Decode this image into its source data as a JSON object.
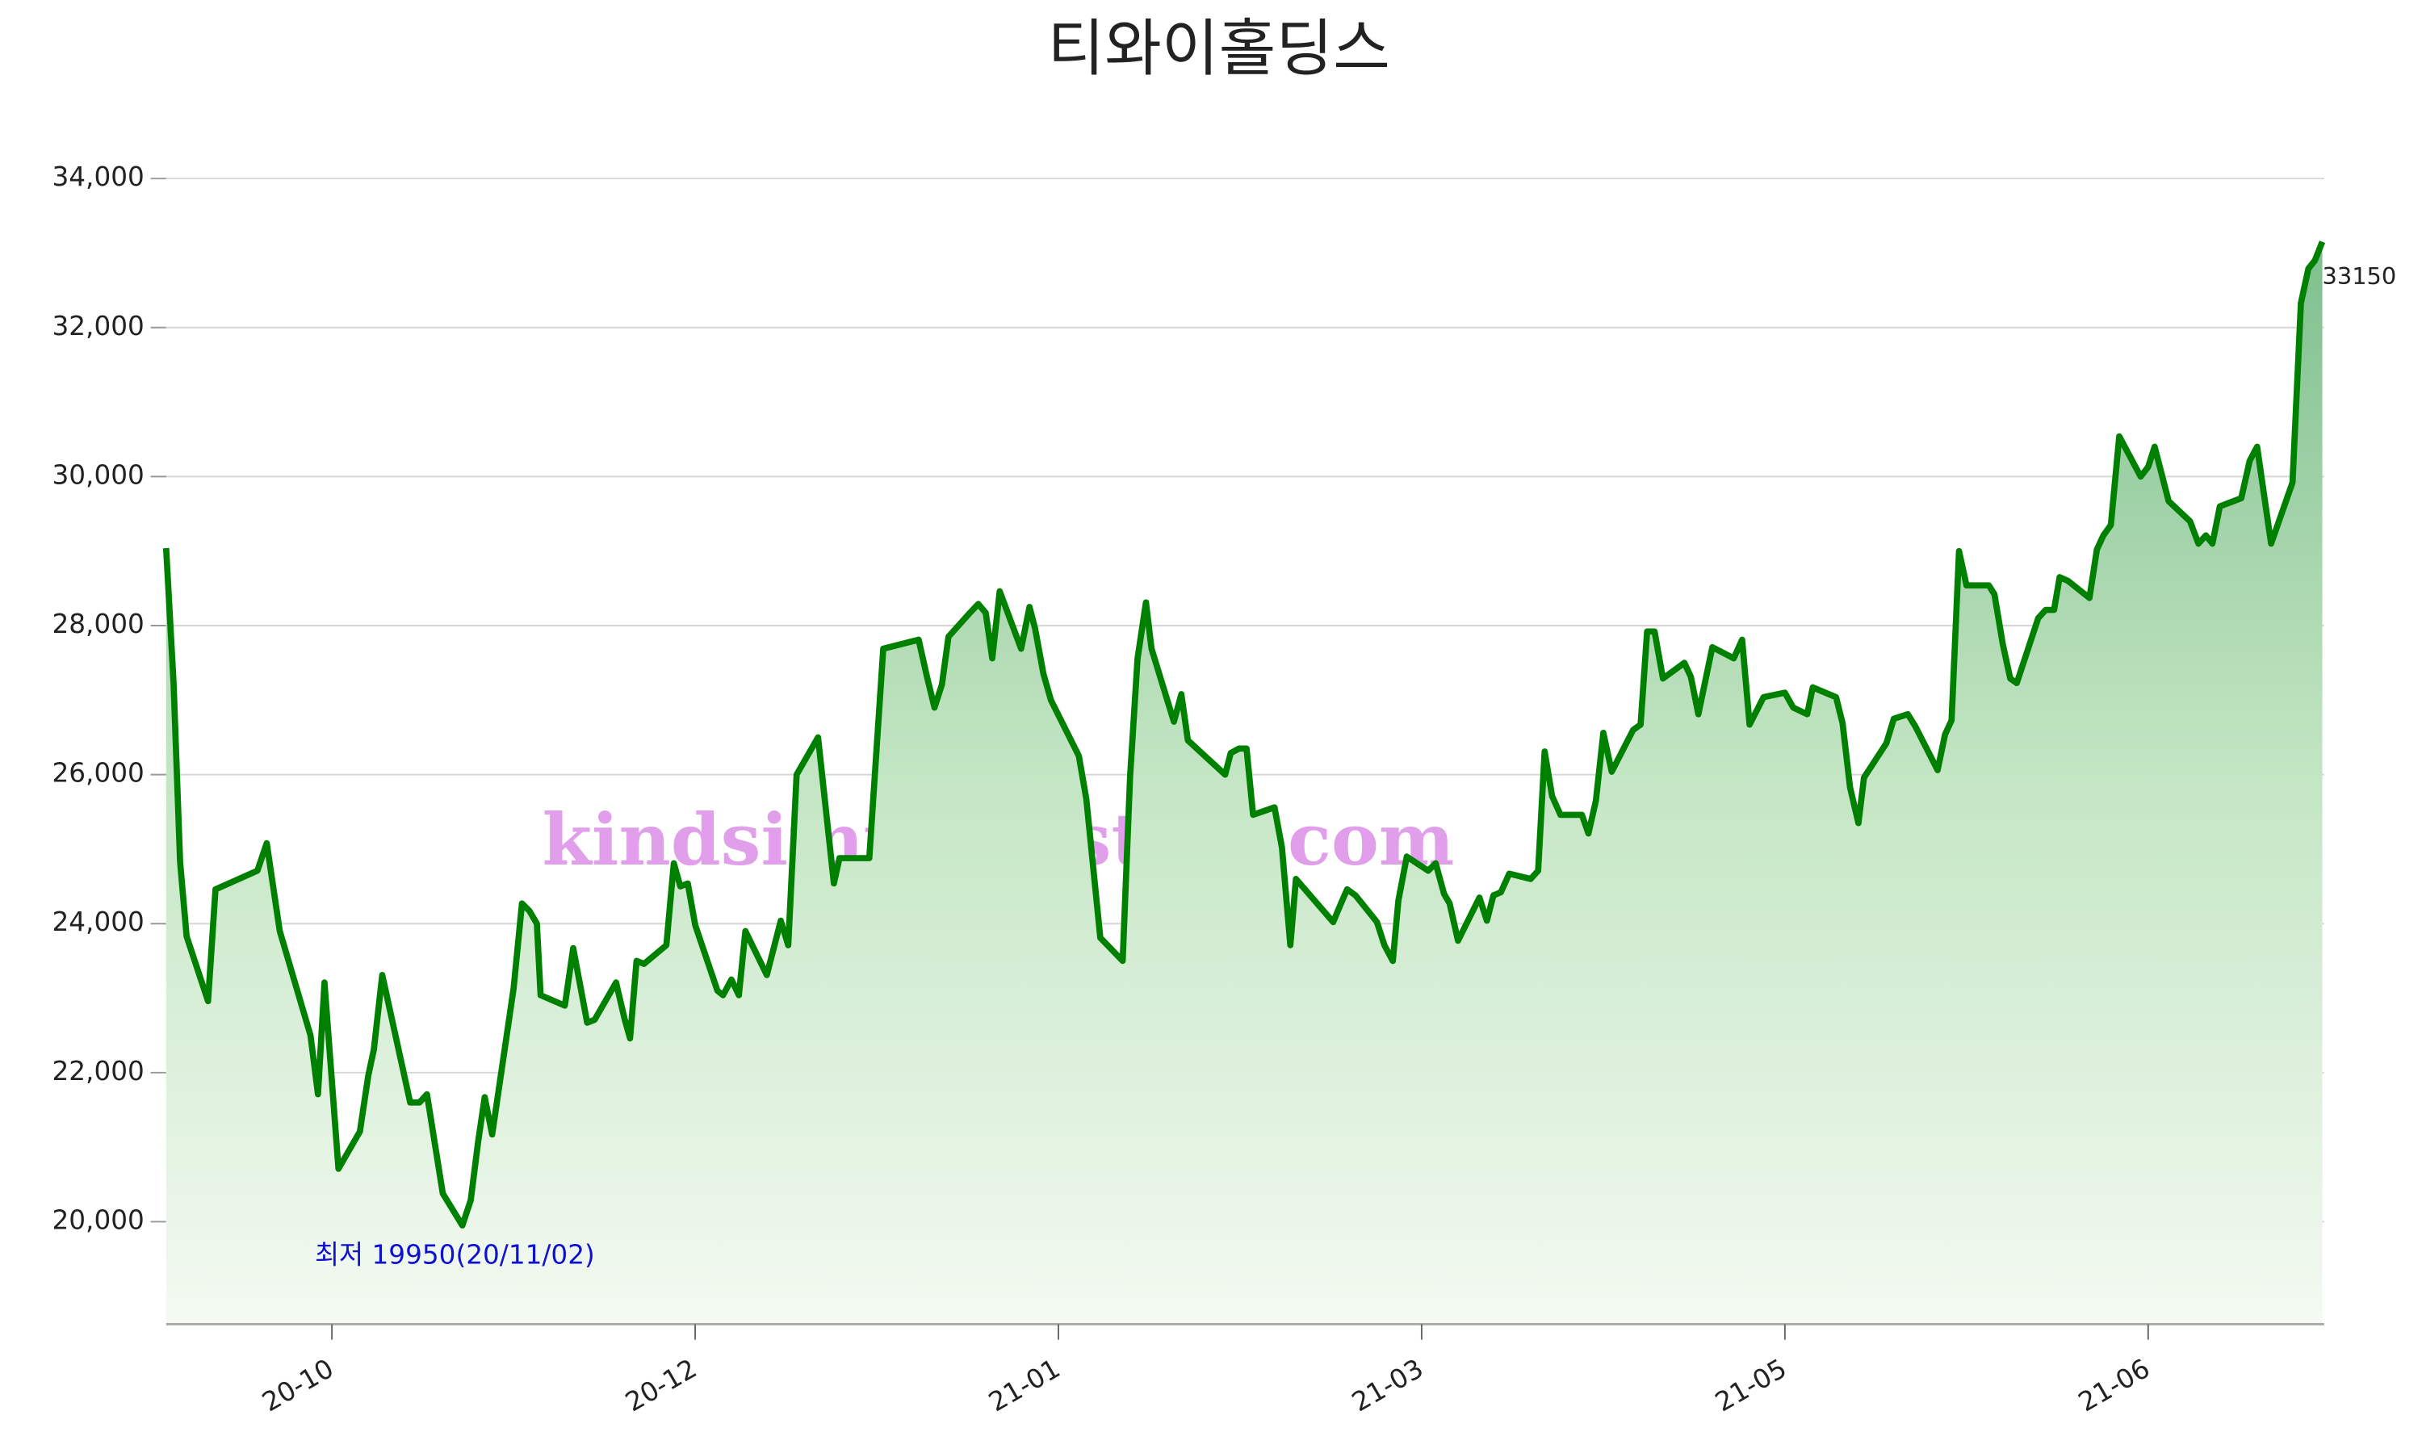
{
  "chart_data": {
    "type": "line",
    "title": "티와이홀딩스",
    "watermark": "kindsimple.tistory.com",
    "annotations": {
      "low": "최저 19950(20/11/02)",
      "last": "33150"
    },
    "series": [
      {
        "name": "티와이홀딩스",
        "color": "#008000",
        "x": [
          0,
          0.8,
          1.5,
          2.2,
          4.5,
          5.3,
          9.8,
          10.8,
          12.2,
          15.5,
          16.3,
          17,
          18.5,
          20.8,
          21.7,
          22.3,
          23.2,
          26.2,
          27.2,
          28,
          29.7,
          31.8,
          32.7,
          33.5,
          34.2,
          35,
          37.3,
          38.2,
          39,
          39.8,
          40.2,
          42.8,
          43.7,
          45.2,
          46,
          48.3,
          49.2,
          49.8,
          50.5,
          51.3,
          53.7,
          54.5,
          55.2,
          56,
          56.8,
          59.2,
          59.8,
          60.7,
          61.5,
          62.2,
          64.5,
          66,
          66.8,
          67.7,
          70,
          71.7,
          72.3,
          75.5,
          77,
          80.8,
          81.7,
          82.5,
          83.3,
          84,
          86.3,
          87.2,
          88,
          88.7,
          89.5,
          91.8,
          92.7,
          93.3,
          94.2,
          95,
          98,
          98.8,
          100.3,
          102.7,
          103.5,
          104.3,
          105.2,
          105.8,
          108.2,
          109,
          109.7,
          113.7,
          114.3,
          115.2,
          116,
          116.7,
          119,
          119.8,
          120.7,
          121.3,
          125.3,
          126.2,
          126.8,
          127.7,
          130,
          130.8,
          131.7,
          132.3,
          133.2,
          135.5,
          136.3,
          137.2,
          137.8,
          138.7,
          141,
          141.8,
          142.5,
          143.3,
          144.2,
          146.5,
          147.3,
          148,
          148.8,
          149.7,
          152,
          152.7,
          153.5,
          154.3,
          155.2,
          157.5,
          158.3,
          159,
          159.8,
          160.7,
          163,
          163.7,
          164.5,
          166,
          168.3,
          169.2,
          170,
          171.5,
          173.8,
          174.7,
          176.2,
          176.8,
          179.3,
          180,
          180.8,
          181.7,
          182.3,
          184.7,
          185.5,
          187,
          187.8,
          190.2,
          191,
          191.7,
          192.5,
          193.3,
          195.7,
          196.3,
          197.2,
          198,
          198.7,
          201,
          201.8,
          202.7,
          203.3,
          204.2,
          206.5,
          207.3,
          208,
          208.8,
          209.7,
          212,
          212.8,
          213.5,
          215,
          217.3,
          218.2,
          219,
          219.7,
          220.5,
          222.8,
          223.7,
          224.5,
          226,
          228.3,
          229.2,
          230,
          230.7,
          231.5
        ],
        "values": [
          29040,
          27230,
          24830,
          23830,
          22960,
          24460,
          24710,
          25080,
          23900,
          22500,
          21710,
          23210,
          20710,
          21210,
          21960,
          22310,
          23310,
          21600,
          21600,
          21710,
          20380,
          19950,
          20290,
          21080,
          21670,
          21170,
          23130,
          24270,
          24170,
          24000,
          23040,
          22900,
          23670,
          22670,
          22710,
          23210,
          22730,
          22460,
          23500,
          23460,
          23710,
          24810,
          24500,
          24540,
          23980,
          23100,
          23040,
          23250,
          23040,
          23900,
          23310,
          24040,
          23710,
          26000,
          26500,
          24540,
          24880,
          24880,
          27690,
          27810,
          27310,
          26900,
          27210,
          27850,
          28170,
          28290,
          28170,
          27560,
          28460,
          27690,
          28250,
          27960,
          27350,
          27000,
          26250,
          25670,
          23810,
          23500,
          25980,
          27560,
          28310,
          27690,
          26710,
          27080,
          26460,
          26000,
          26290,
          26350,
          26350,
          25460,
          25560,
          25020,
          23710,
          24600,
          24020,
          24290,
          24460,
          24380,
          24020,
          23710,
          23500,
          24310,
          24900,
          24710,
          24810,
          24400,
          24270,
          23770,
          24350,
          24040,
          24380,
          24420,
          24670,
          24600,
          24710,
          26310,
          25710,
          25460,
          25460,
          25210,
          25650,
          26560,
          26040,
          26600,
          26670,
          27920,
          27920,
          27290,
          27500,
          27310,
          26810,
          27710,
          27560,
          27810,
          26670,
          27040,
          27100,
          26900,
          26810,
          27170,
          27040,
          26690,
          25830,
          25350,
          25960,
          26420,
          26750,
          26810,
          26650,
          26060,
          26540,
          26730,
          29000,
          28540,
          28540,
          28420,
          27750,
          27290,
          27230,
          28100,
          28210,
          28210,
          28650,
          28600,
          28370,
          29020,
          29210,
          29350,
          30540,
          30000,
          30130,
          30400,
          29670,
          29400,
          29100,
          29210,
          29100,
          29600,
          29710,
          30210,
          30400,
          29100,
          29920,
          32330,
          32790,
          32900,
          33150
        ]
      }
    ],
    "xlim": [
      0,
      231.7
    ],
    "xticks": [
      {
        "value": 17.8,
        "label": "20-10"
      },
      {
        "value": 56.8,
        "label": "20-12"
      },
      {
        "value": 95.8,
        "label": "21-01"
      },
      {
        "value": 134.8,
        "label": "21-03"
      },
      {
        "value": 173.8,
        "label": "21-05"
      },
      {
        "value": 212.8,
        "label": "21-06"
      }
    ],
    "ylim": [
      18625,
      34500
    ],
    "yticks": [
      {
        "value": 20000,
        "label": "20,000"
      },
      {
        "value": 22000,
        "label": "22,000"
      },
      {
        "value": 24000,
        "label": "24,000"
      },
      {
        "value": 26000,
        "label": "26,000"
      },
      {
        "value": 28000,
        "label": "28,000"
      },
      {
        "value": 30000,
        "label": "30,000"
      },
      {
        "value": 32000,
        "label": "32,000"
      },
      {
        "value": 34000,
        "label": "34,000"
      }
    ],
    "grid": true
  }
}
